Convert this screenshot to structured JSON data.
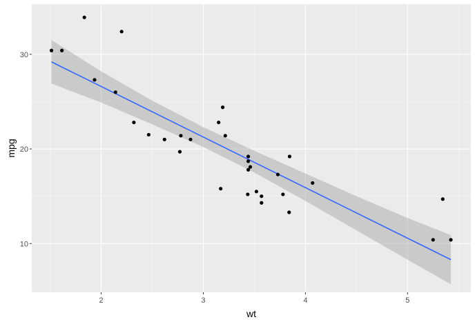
{
  "chart_data": {
    "type": "scatter",
    "title": "",
    "xlabel": "wt",
    "ylabel": "mpg",
    "xlim": [
      1.32,
      5.62
    ],
    "ylim": [
      4.85,
      35.3
    ],
    "x_ticks": [
      2,
      3,
      4,
      5
    ],
    "x_tick_labels": [
      "2",
      "3",
      "4",
      "5"
    ],
    "y_ticks": [
      10,
      20,
      30
    ],
    "y_tick_labels": [
      "10",
      "20",
      "30"
    ],
    "grid": true,
    "legend": "none",
    "colors": {
      "panel_background": "#ebebeb",
      "grid_major": "#ffffff",
      "grid_minor": "#f5f5f5",
      "points": "#000000",
      "fit_line": "#3366ff",
      "confidence_band": "#999999"
    },
    "points": [
      {
        "x": 2.62,
        "y": 21.0
      },
      {
        "x": 2.875,
        "y": 21.0
      },
      {
        "x": 2.32,
        "y": 22.8
      },
      {
        "x": 3.215,
        "y": 21.4
      },
      {
        "x": 3.44,
        "y": 18.7
      },
      {
        "x": 3.46,
        "y": 18.1
      },
      {
        "x": 3.57,
        "y": 14.3
      },
      {
        "x": 3.19,
        "y": 24.4
      },
      {
        "x": 3.15,
        "y": 22.8
      },
      {
        "x": 3.44,
        "y": 19.2
      },
      {
        "x": 3.44,
        "y": 17.8
      },
      {
        "x": 4.07,
        "y": 16.4
      },
      {
        "x": 3.73,
        "y": 17.3
      },
      {
        "x": 3.78,
        "y": 15.2
      },
      {
        "x": 5.25,
        "y": 10.4
      },
      {
        "x": 5.424,
        "y": 10.4
      },
      {
        "x": 5.345,
        "y": 14.7
      },
      {
        "x": 2.2,
        "y": 32.4
      },
      {
        "x": 1.615,
        "y": 30.4
      },
      {
        "x": 1.835,
        "y": 33.9
      },
      {
        "x": 2.465,
        "y": 21.5
      },
      {
        "x": 3.52,
        "y": 15.5
      },
      {
        "x": 3.435,
        "y": 15.2
      },
      {
        "x": 3.84,
        "y": 13.3
      },
      {
        "x": 3.845,
        "y": 19.2
      },
      {
        "x": 1.935,
        "y": 27.3
      },
      {
        "x": 2.14,
        "y": 26.0
      },
      {
        "x": 1.513,
        "y": 30.4
      },
      {
        "x": 3.17,
        "y": 15.8
      },
      {
        "x": 2.77,
        "y": 19.7
      },
      {
        "x": 3.57,
        "y": 15.0
      },
      {
        "x": 2.78,
        "y": 21.4
      }
    ],
    "fit": {
      "method": "linear",
      "line": [
        {
          "x": 1.513,
          "y": 29.2
        },
        {
          "x": 5.424,
          "y": 8.3
        }
      ],
      "band_upper": [
        {
          "x": 1.513,
          "y": 31.5
        },
        {
          "x": 2.0,
          "y": 28.2
        },
        {
          "x": 2.5,
          "y": 25.1
        },
        {
          "x": 3.0,
          "y": 22.3
        },
        {
          "x": 3.5,
          "y": 19.8
        },
        {
          "x": 4.0,
          "y": 17.4
        },
        {
          "x": 4.5,
          "y": 15.0
        },
        {
          "x": 5.0,
          "y": 12.7
        },
        {
          "x": 5.424,
          "y": 10.9
        }
      ],
      "band_lower": [
        {
          "x": 1.513,
          "y": 26.9
        },
        {
          "x": 2.0,
          "y": 24.9
        },
        {
          "x": 2.5,
          "y": 22.6
        },
        {
          "x": 3.0,
          "y": 20.2
        },
        {
          "x": 3.5,
          "y": 17.5
        },
        {
          "x": 4.0,
          "y": 14.5
        },
        {
          "x": 4.5,
          "y": 11.4
        },
        {
          "x": 5.0,
          "y": 8.3
        },
        {
          "x": 5.424,
          "y": 5.7
        }
      ]
    }
  }
}
